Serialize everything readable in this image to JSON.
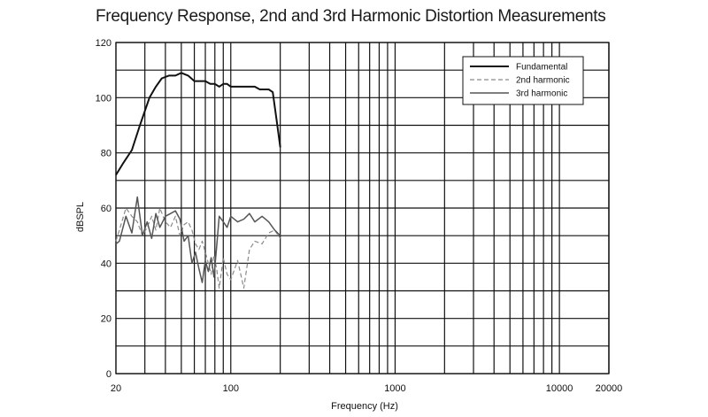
{
  "chart_data": {
    "type": "line",
    "title": "Frequency Response, 2nd and 3rd Harmonic Distortion Measurements",
    "xlabel": "Frequency (Hz)",
    "ylabel": "dBSPL",
    "xscale": "log",
    "xlim": [
      20,
      20000
    ],
    "ylim": [
      0,
      120
    ],
    "x_ticks": [
      20,
      100,
      1000,
      10000,
      20000
    ],
    "y_ticks": [
      0,
      20,
      40,
      60,
      80,
      100,
      120
    ],
    "grid": true,
    "legend_position": "top-right",
    "series": [
      {
        "name": "Fundamental",
        "style": "solid-thick",
        "color": "#111111",
        "x": [
          20,
          22,
          25,
          28,
          32,
          35,
          38,
          42,
          46,
          50,
          55,
          60,
          65,
          70,
          75,
          80,
          85,
          90,
          95,
          100,
          110,
          120,
          130,
          140,
          150,
          160,
          170,
          180,
          190,
          200
        ],
        "y": [
          72,
          76,
          81,
          90,
          100,
          104,
          107,
          108,
          108,
          109,
          108,
          106,
          106,
          106,
          105,
          105,
          104,
          105,
          105,
          104,
          104,
          104,
          104,
          104,
          103,
          103,
          103,
          102,
          92,
          82
        ]
      },
      {
        "name": "2nd harmonic",
        "style": "dashed",
        "color": "#8a8a8a",
        "x": [
          20,
          21,
          23,
          25,
          27,
          29,
          31,
          33,
          35,
          37,
          40,
          43,
          46,
          49,
          52,
          55,
          58,
          61,
          64,
          67,
          70,
          73,
          76,
          79,
          82,
          85,
          90,
          95,
          100,
          110,
          120,
          130,
          140,
          155,
          170,
          185,
          200
        ],
        "y": [
          48,
          52,
          60,
          57,
          55,
          50,
          53,
          57,
          52,
          60,
          55,
          53,
          57,
          50,
          54,
          55,
          52,
          47,
          45,
          48,
          44,
          40,
          36,
          43,
          38,
          31,
          42,
          36,
          34,
          41,
          31,
          45,
          48,
          47,
          51,
          52,
          49
        ]
      },
      {
        "name": "3rd harmonic",
        "style": "solid",
        "color": "#555555",
        "x": [
          20,
          21,
          23,
          25,
          27,
          29,
          31,
          33,
          35,
          37,
          40,
          43,
          46,
          49,
          52,
          55,
          58,
          61,
          64,
          67,
          70,
          73,
          76,
          79,
          82,
          85,
          90,
          95,
          100,
          110,
          120,
          130,
          140,
          155,
          170,
          185,
          200
        ],
        "y": [
          47,
          48,
          57,
          51,
          64,
          50,
          55,
          49,
          58,
          53,
          57,
          58,
          59,
          56,
          48,
          50,
          40,
          44,
          38,
          33,
          41,
          37,
          42,
          35,
          46,
          57,
          55,
          53,
          57,
          55,
          56,
          58,
          55,
          57,
          55,
          52,
          50
        ]
      }
    ]
  }
}
